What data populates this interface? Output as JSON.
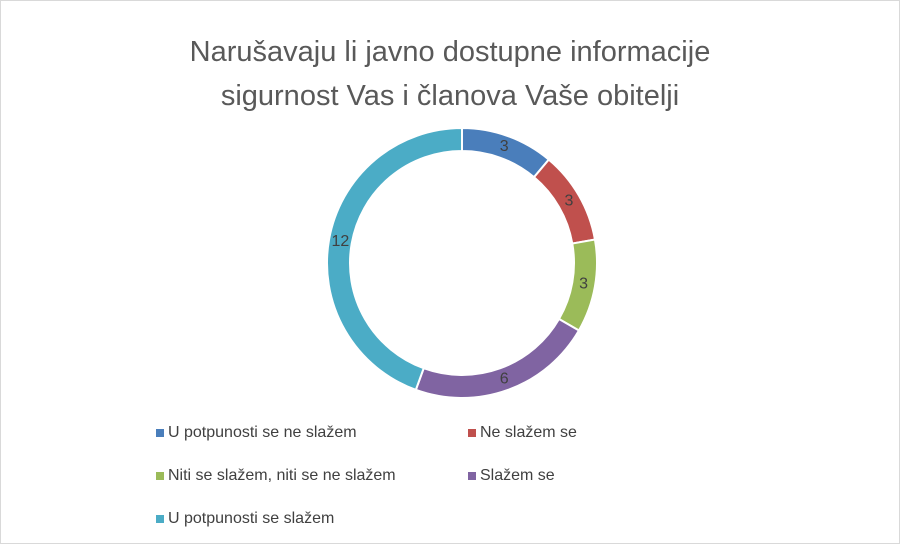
{
  "chart_data": {
    "type": "donut",
    "title": "Narušavaju li javno dostupne informacije sigurnost Vas i članova Vaše obitelji",
    "categories": [
      "U potpunosti se ne slažem",
      "Ne slažem se",
      "Niti se slažem, niti se ne slažem",
      "Slažem se",
      "U potpunosti se slažem"
    ],
    "values": [
      3,
      3,
      3,
      6,
      12
    ],
    "colors": [
      "#4a7ebb",
      "#c0504d",
      "#9bbb59",
      "#8064a2",
      "#4bacc6"
    ],
    "legend": "bottom"
  }
}
